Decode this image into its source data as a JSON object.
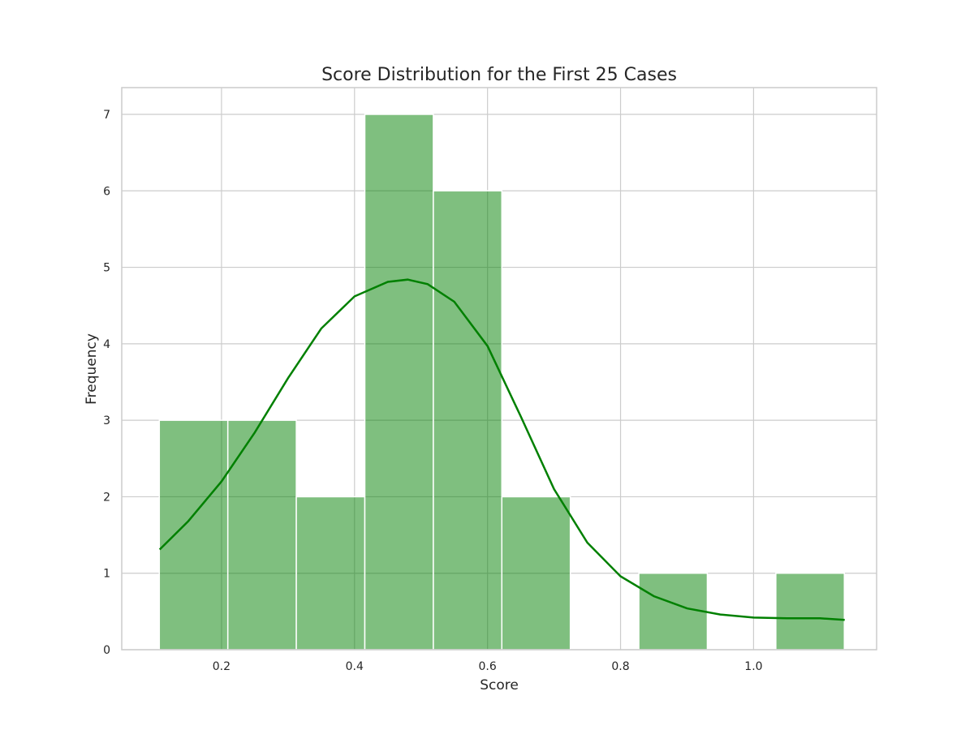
{
  "chart_data": {
    "type": "bar",
    "title": "Score Distribution for the First 25 Cases",
    "xlabel": "Score",
    "ylabel": "Frequency",
    "xlim": [
      0.05,
      1.185
    ],
    "ylim": [
      0,
      7.35
    ],
    "xticks": [
      0.2,
      0.4,
      0.6,
      0.8,
      1.0
    ],
    "xtick_labels": [
      "0.2",
      "0.4",
      "0.6",
      "0.8",
      "1.0"
    ],
    "yticks": [
      0,
      1,
      2,
      3,
      4,
      5,
      6,
      7
    ],
    "ytick_labels": [
      "0",
      "1",
      "2",
      "3",
      "4",
      "5",
      "6",
      "7"
    ],
    "grid": true,
    "bars": [
      {
        "x0": 0.1065,
        "x1": 0.2095,
        "count": 3
      },
      {
        "x0": 0.2095,
        "x1": 0.3125,
        "count": 3
      },
      {
        "x0": 0.3125,
        "x1": 0.4155,
        "count": 2
      },
      {
        "x0": 0.4155,
        "x1": 0.5185,
        "count": 7
      },
      {
        "x0": 0.5185,
        "x1": 0.6215,
        "count": 6
      },
      {
        "x0": 0.6215,
        "x1": 0.7245,
        "count": 2
      },
      {
        "x0": 0.7245,
        "x1": 0.8275,
        "count": 0
      },
      {
        "x0": 0.8275,
        "x1": 0.9305,
        "count": 1
      },
      {
        "x0": 0.9305,
        "x1": 1.0335,
        "count": 0
      },
      {
        "x0": 1.0335,
        "x1": 1.1365,
        "count": 1
      }
    ],
    "kde": {
      "x": [
        0.107,
        0.15,
        0.2,
        0.25,
        0.3,
        0.35,
        0.4,
        0.45,
        0.48,
        0.51,
        0.55,
        0.6,
        0.65,
        0.7,
        0.75,
        0.8,
        0.85,
        0.9,
        0.95,
        1.0,
        1.05,
        1.1,
        1.137
      ],
      "y": [
        1.31,
        1.68,
        2.2,
        2.84,
        3.55,
        4.2,
        4.62,
        4.81,
        4.84,
        4.78,
        4.55,
        3.97,
        3.05,
        2.1,
        1.4,
        0.96,
        0.7,
        0.54,
        0.46,
        0.42,
        0.41,
        0.41,
        0.39
      ]
    },
    "color": "#008000"
  }
}
